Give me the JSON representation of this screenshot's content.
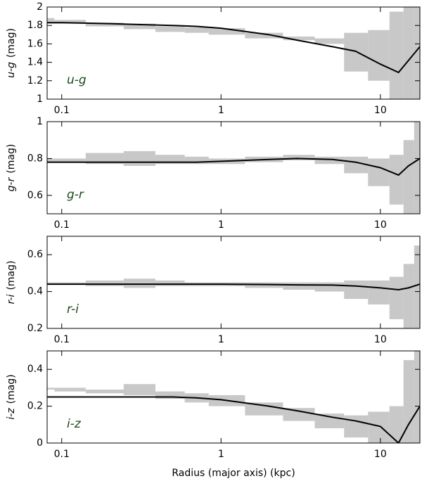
{
  "chart_data": [
    {
      "type": "line",
      "y_label": "u-g",
      "y_unit": "(mag)",
      "annotation": "u-g",
      "xscale": "log",
      "x": [
        0.081,
        0.1,
        0.2,
        0.3,
        0.5,
        0.7,
        1,
        2,
        3,
        5,
        7,
        10,
        13,
        15,
        17.7
      ],
      "values": [
        1.83,
        1.83,
        1.82,
        1.81,
        1.8,
        1.79,
        1.77,
        1.7,
        1.64,
        1.57,
        1.52,
        1.38,
        1.29,
        1.42,
        1.57
      ],
      "lower": [
        1.82,
        1.82,
        1.79,
        1.76,
        1.73,
        1.72,
        1.7,
        1.66,
        1.64,
        1.6,
        1.3,
        1.2,
        1.0,
        1.0,
        1.0
      ],
      "upper": [
        1.88,
        1.86,
        1.83,
        1.82,
        1.79,
        1.78,
        1.77,
        1.72,
        1.68,
        1.66,
        1.72,
        1.75,
        1.95,
        2.0,
        2.0
      ],
      "color": "#000000",
      "band_color": "#c8c8c8",
      "xlim": [
        0.081,
        17.7
      ],
      "xticks": [
        0.1,
        1,
        10
      ],
      "ylim": [
        1,
        2
      ],
      "yticks": [
        1,
        1.2,
        1.4,
        1.6,
        1.8,
        2
      ]
    },
    {
      "type": "line",
      "y_label": "g-r",
      "y_unit": "(mag)",
      "annotation": "g-r",
      "xscale": "log",
      "x": [
        0.081,
        0.1,
        0.2,
        0.3,
        0.5,
        0.7,
        1,
        2,
        3,
        5,
        7,
        10,
        13,
        15,
        17.7
      ],
      "values": [
        0.78,
        0.78,
        0.78,
        0.78,
        0.78,
        0.78,
        0.785,
        0.795,
        0.8,
        0.795,
        0.78,
        0.75,
        0.71,
        0.76,
        0.8
      ],
      "lower": [
        0.78,
        0.78,
        0.77,
        0.76,
        0.77,
        0.77,
        0.77,
        0.78,
        0.79,
        0.77,
        0.72,
        0.65,
        0.55,
        0.5,
        0.5
      ],
      "upper": [
        0.8,
        0.8,
        0.83,
        0.84,
        0.82,
        0.81,
        0.8,
        0.81,
        0.82,
        0.81,
        0.81,
        0.8,
        0.82,
        0.9,
        1.0
      ],
      "color": "#000000",
      "band_color": "#c8c8c8",
      "xlim": [
        0.081,
        17.7
      ],
      "xticks": [
        0.1,
        1,
        10
      ],
      "ylim": [
        0.5,
        1
      ],
      "yticks": [
        0.6,
        0.8,
        1
      ]
    },
    {
      "type": "line",
      "y_label": "r-i",
      "y_unit": "(mag)",
      "annotation": "r-i",
      "xscale": "log",
      "x": [
        0.081,
        0.1,
        0.2,
        0.3,
        0.5,
        0.7,
        1,
        2,
        3,
        5,
        7,
        10,
        13,
        15,
        17.7
      ],
      "values": [
        0.44,
        0.44,
        0.44,
        0.44,
        0.44,
        0.44,
        0.44,
        0.438,
        0.436,
        0.435,
        0.43,
        0.42,
        0.41,
        0.42,
        0.44
      ],
      "lower": [
        0.44,
        0.44,
        0.43,
        0.42,
        0.43,
        0.43,
        0.43,
        0.42,
        0.41,
        0.4,
        0.36,
        0.33,
        0.25,
        0.2,
        0.2
      ],
      "upper": [
        0.45,
        0.45,
        0.46,
        0.47,
        0.46,
        0.45,
        0.45,
        0.45,
        0.45,
        0.45,
        0.46,
        0.46,
        0.48,
        0.55,
        0.65
      ],
      "color": "#000000",
      "band_color": "#c8c8c8",
      "xlim": [
        0.081,
        17.7
      ],
      "xticks": [
        0.1,
        1,
        10
      ],
      "ylim": [
        0.2,
        0.7
      ],
      "yticks": [
        0.2,
        0.4,
        0.6
      ]
    },
    {
      "type": "line",
      "y_label": "i-z",
      "y_unit": "(mag)",
      "annotation": "i-z",
      "xscale": "log",
      "x": [
        0.081,
        0.1,
        0.2,
        0.3,
        0.5,
        0.7,
        1,
        2,
        3,
        5,
        7,
        10,
        13,
        15,
        17.7
      ],
      "values": [
        0.25,
        0.25,
        0.25,
        0.25,
        0.25,
        0.245,
        0.235,
        0.2,
        0.175,
        0.14,
        0.12,
        0.09,
        0.0,
        0.1,
        0.2
      ],
      "lower": [
        0.29,
        0.28,
        0.27,
        0.26,
        0.24,
        0.22,
        0.2,
        0.15,
        0.12,
        0.08,
        0.03,
        0.0,
        0.0,
        0.0,
        0.0
      ],
      "upper": [
        0.3,
        0.3,
        0.29,
        0.32,
        0.28,
        0.27,
        0.26,
        0.22,
        0.19,
        0.16,
        0.15,
        0.17,
        0.2,
        0.45,
        0.5
      ],
      "color": "#000000",
      "band_color": "#c8c8c8",
      "xlim": [
        0.081,
        17.7
      ],
      "xticks": [
        0.1,
        1,
        10
      ],
      "ylim": [
        0,
        0.5
      ],
      "yticks": [
        0,
        0.2,
        0.4
      ]
    }
  ],
  "xlabel": "Radius (major axis)  (kpc)"
}
